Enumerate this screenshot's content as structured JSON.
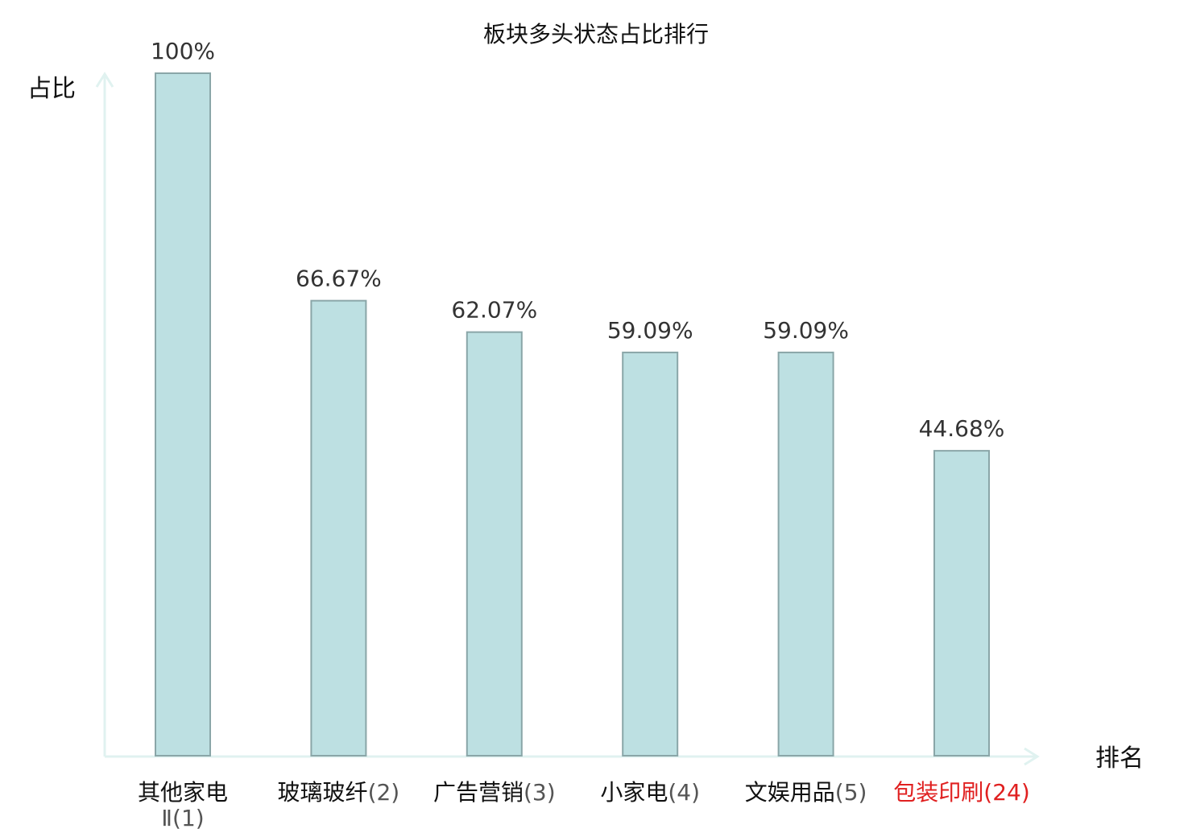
{
  "chart_data": {
    "type": "bar",
    "title": "板块多头状态占比排行",
    "xlabel": "排名",
    "ylabel": "占比",
    "ylim": [
      0,
      100
    ],
    "grid": false,
    "categories": [
      {
        "name": "其他家电Ⅱ",
        "rank": "(1)",
        "highlight": false
      },
      {
        "name": "玻璃玻纤",
        "rank": "(2)",
        "highlight": false
      },
      {
        "name": "广告营销",
        "rank": "(3)",
        "highlight": false
      },
      {
        "name": "小家电",
        "rank": "(4)",
        "highlight": false
      },
      {
        "name": "文娱用品",
        "rank": "(5)",
        "highlight": false
      },
      {
        "name": "包装印刷",
        "rank": "(24)",
        "highlight": true
      }
    ],
    "values": [
      100,
      66.67,
      62.07,
      59.09,
      59.09,
      44.68
    ],
    "value_labels": [
      "100%",
      "66.67%",
      "62.07%",
      "59.09%",
      "59.09%",
      "44.68%"
    ],
    "colors": {
      "bar_fill": "#bde0e2",
      "bar_stroke": "#8aa6a8",
      "axis": "#e0f2f0",
      "label_normal_name": "#111111",
      "label_normal_rank": "#555555",
      "label_highlight": "#e02020"
    }
  }
}
